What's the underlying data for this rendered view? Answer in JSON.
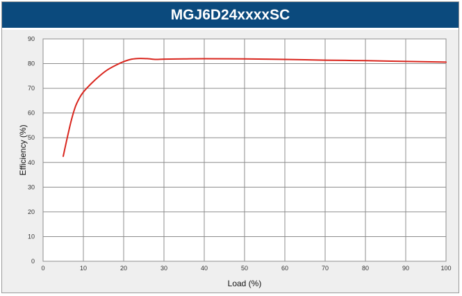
{
  "chart_data": {
    "type": "line",
    "title": "MGJ6D24xxxxSC",
    "xlabel": "Load (%)",
    "ylabel": "Efficiency (%)",
    "xlim": [
      0,
      100
    ],
    "ylim": [
      0,
      90
    ],
    "xticks": [
      "0",
      "10",
      "20",
      "30",
      "40",
      "50",
      "60",
      "70",
      "80",
      "90",
      "100"
    ],
    "yticks": [
      "0",
      "10",
      "20",
      "30",
      "40",
      "50",
      "60",
      "70",
      "80",
      "90"
    ],
    "grid": true,
    "series": [
      {
        "color": "#d9251d",
        "points": [
          [
            5,
            42.5
          ],
          [
            6,
            50
          ],
          [
            7,
            57
          ],
          [
            8,
            62.5
          ],
          [
            9,
            66
          ],
          [
            10,
            68.5
          ],
          [
            12,
            72
          ],
          [
            14,
            75
          ],
          [
            16,
            77.5
          ],
          [
            18,
            79.3
          ],
          [
            20,
            80.8
          ],
          [
            22,
            81.8
          ],
          [
            24,
            82.1
          ],
          [
            26,
            82.0
          ],
          [
            28,
            81.7
          ],
          [
            30,
            81.8
          ],
          [
            35,
            81.9
          ],
          [
            40,
            82.0
          ],
          [
            50,
            81.9
          ],
          [
            60,
            81.7
          ],
          [
            70,
            81.4
          ],
          [
            80,
            81.2
          ],
          [
            90,
            80.9
          ],
          [
            100,
            80.6
          ]
        ]
      }
    ]
  },
  "colors": {
    "header_bg": "#0b4a7d",
    "grid": "#8c8c8c",
    "plot_bg": "#ffffff",
    "panel_bg": "#efefef"
  }
}
